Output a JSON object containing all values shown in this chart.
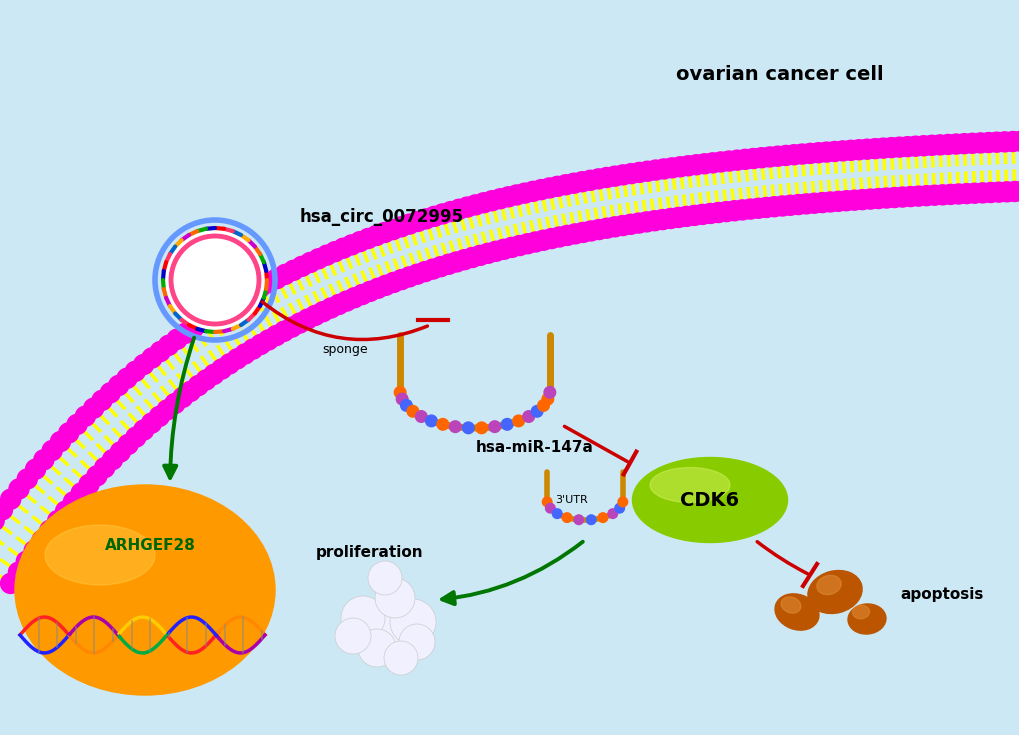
{
  "bg_color": "#cce8f5",
  "membrane_color1": "#ff00dd",
  "membrane_color2": "#ffff00",
  "title_text": "ovarian cancer cell",
  "labels": {
    "hsa_circ": "hsa_circ_0072995",
    "sponge": "sponge",
    "mir": "hsa-miR-147a",
    "utr": "3'UTR",
    "cdk6": "CDK6",
    "proliferation": "proliferation",
    "apoptosis": "apoptosis",
    "gene": "ARHGEF28"
  },
  "arrow_red": "#cc0000",
  "arrow_green": "#007700",
  "circ_ring_outer": "#6699ff",
  "circ_ring_inner": "#ff4488",
  "nucleus_color": "#ff9900",
  "cdk6_color": "#88cc00"
}
